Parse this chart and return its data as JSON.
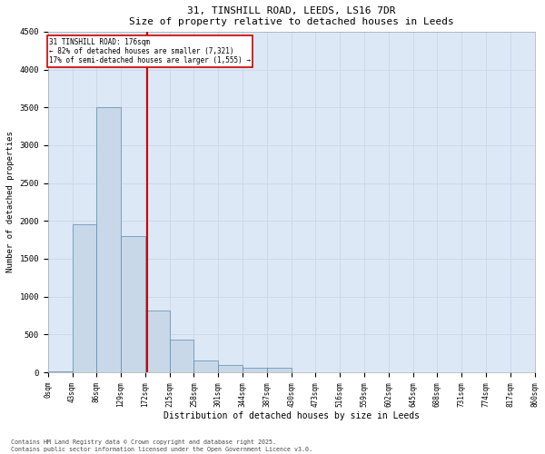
{
  "title_line1": "31, TINSHILL ROAD, LEEDS, LS16 7DR",
  "title_line2": "Size of property relative to detached houses in Leeds",
  "xlabel": "Distribution of detached houses by size in Leeds",
  "ylabel": "Number of detached properties",
  "annotation_title": "31 TINSHILL ROAD: 176sqm",
  "annotation_line2": "← 82% of detached houses are smaller (7,321)",
  "annotation_line3": "17% of semi-detached houses are larger (1,555) →",
  "property_size_sqm": 176,
  "bin_edges": [
    0,
    43,
    86,
    129,
    172,
    215,
    258,
    301,
    344,
    387,
    430,
    473,
    516,
    559,
    602,
    645,
    688,
    731,
    774,
    817,
    860
  ],
  "bar_values": [
    10,
    1950,
    3500,
    1800,
    820,
    430,
    160,
    95,
    65,
    55,
    0,
    0,
    0,
    0,
    0,
    0,
    0,
    0,
    0,
    0
  ],
  "bar_color": "#c8d8e8",
  "bar_edge_color": "#5a8ab0",
  "vline_color": "#cc0000",
  "vline_x": 176,
  "annotation_box_color": "#cc0000",
  "annotation_bg": "#ffffff",
  "ylim": [
    0,
    4500
  ],
  "yticks": [
    0,
    500,
    1000,
    1500,
    2000,
    2500,
    3000,
    3500,
    4000,
    4500
  ],
  "grid_color": "#ccd8ec",
  "bg_color": "#dce8f5",
  "footnote1": "Contains HM Land Registry data © Crown copyright and database right 2025.",
  "footnote2": "Contains public sector information licensed under the Open Government Licence v3.0."
}
